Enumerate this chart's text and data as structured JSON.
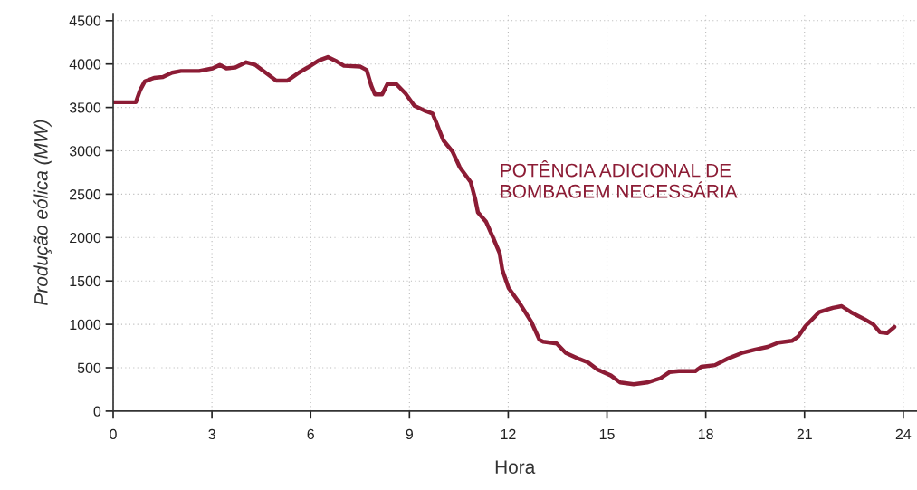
{
  "chart_data": {
    "type": "line",
    "xlabel": "Hora",
    "ylabel": "Produção eólica (MW)",
    "annotations": [
      "POTÊNCIA ADICIONAL DE\nBOMBAGEM NECESSÁRIA"
    ],
    "xlim": [
      0,
      24.4
    ],
    "ylim": [
      0,
      4580
    ],
    "xticks": [
      0,
      3,
      6,
      9,
      12,
      15,
      18,
      21,
      24
    ],
    "yticks": [
      0,
      500,
      1000,
      1500,
      2000,
      2500,
      3000,
      3500,
      4000,
      4500
    ],
    "grid": true,
    "line_style": "solid",
    "series": [
      {
        "color": "#8c1c35",
        "x": [
          0,
          0.69,
          0.82,
          0.96,
          1.24,
          1.51,
          1.79,
          2.06,
          2.61,
          3.02,
          3.24,
          3.44,
          3.71,
          4.04,
          4.32,
          4.67,
          4.95,
          5.3,
          5.64,
          5.91,
          6.24,
          6.52,
          6.79,
          7.01,
          7.51,
          7.7,
          7.84,
          7.95,
          8.17,
          8.33,
          8.6,
          8.88,
          9.15,
          9.48,
          9.7,
          9.81,
          10.03,
          10.31,
          10.53,
          10.86,
          11.0,
          11.08,
          11.33,
          11.55,
          11.74,
          11.82,
          12.01,
          12.37,
          12.7,
          12.95,
          13.06,
          13.47,
          13.75,
          14.16,
          14.43,
          14.71,
          15.12,
          15.4,
          15.81,
          16.22,
          16.63,
          16.9,
          17.18,
          17.68,
          17.86,
          18.28,
          18.64,
          19.1,
          19.51,
          19.88,
          20.21,
          20.62,
          20.81,
          21.03,
          21.16,
          21.44,
          21.86,
          22.13,
          22.41,
          22.82,
          23.09,
          23.29,
          23.51,
          23.73
        ],
        "values": [
          3560,
          3560,
          3700,
          3800,
          3840,
          3850,
          3900,
          3920,
          3920,
          3950,
          3990,
          3950,
          3960,
          4020,
          3990,
          3890,
          3810,
          3810,
          3900,
          3960,
          4040,
          4080,
          4030,
          3980,
          3970,
          3930,
          3750,
          3650,
          3650,
          3770,
          3770,
          3660,
          3520,
          3460,
          3430,
          3330,
          3120,
          2990,
          2810,
          2640,
          2440,
          2290,
          2180,
          1990,
          1820,
          1630,
          1420,
          1230,
          1030,
          820,
          800,
          780,
          670,
          600,
          560,
          480,
          410,
          330,
          310,
          330,
          380,
          450,
          460,
          460,
          510,
          530,
          600,
          670,
          710,
          740,
          790,
          810,
          860,
          980,
          1030,
          1140,
          1190,
          1210,
          1140,
          1060,
          1000,
          910,
          900,
          970
        ]
      }
    ]
  }
}
